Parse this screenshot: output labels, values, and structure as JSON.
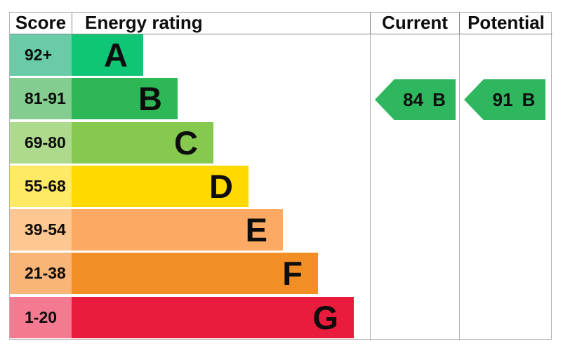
{
  "header": {
    "score": "Score",
    "energy_rating": "Energy rating",
    "current": "Current",
    "potential": "Potential"
  },
  "bands": [
    {
      "score": "92+",
      "letter": "A",
      "bar_color": "#0fc576",
      "score_color": "#69cca7"
    },
    {
      "score": "81-91",
      "letter": "B",
      "bar_color": "#2eb757",
      "score_color": "#85cc90"
    },
    {
      "score": "69-80",
      "letter": "C",
      "bar_color": "#85c94e",
      "score_color": "#aeda8e"
    },
    {
      "score": "55-68",
      "letter": "D",
      "bar_color": "#ffd900",
      "score_color": "#ffe965"
    },
    {
      "score": "39-54",
      "letter": "E",
      "bar_color": "#fba963",
      "score_color": "#fcc791"
    },
    {
      "score": "21-38",
      "letter": "F",
      "bar_color": "#f28e26",
      "score_color": "#f8b577"
    },
    {
      "score": "1-20",
      "letter": "G",
      "bar_color": "#e91c3d",
      "score_color": "#f37a90"
    }
  ],
  "current": {
    "value": "84",
    "letter": "B",
    "arrow_color": "#2eb75e"
  },
  "potential": {
    "value": "91",
    "letter": "B",
    "arrow_color": "#2eb75e"
  },
  "chart_data": {
    "type": "bar",
    "title": "Energy rating (EPC band chart)",
    "categories": [
      "A",
      "B",
      "C",
      "D",
      "E",
      "F",
      "G"
    ],
    "score_ranges": [
      "92+",
      "81-91",
      "69-80",
      "55-68",
      "39-54",
      "21-38",
      "1-20"
    ],
    "bar_lengths_relative": [
      1,
      2,
      3,
      4,
      5,
      6,
      7
    ],
    "band_colors": [
      "#0fc576",
      "#2eb757",
      "#85c94e",
      "#ffd900",
      "#fba963",
      "#f28e26",
      "#e91c3d"
    ],
    "current": {
      "score": 84,
      "rating": "B"
    },
    "potential": {
      "score": 91,
      "rating": "B"
    },
    "legend_position": "none",
    "grid": false
  }
}
